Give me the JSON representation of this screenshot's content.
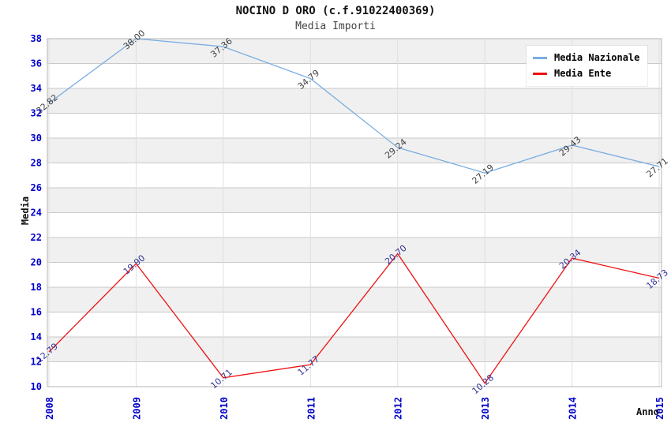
{
  "header": {
    "title": "NOCINO D ORO (c.f.91022400369)",
    "subtitle": "Media Importi"
  },
  "chart_data": {
    "type": "line",
    "title": "NOCINO D ORO (c.f.91022400369)",
    "subtitle": "Media Importi",
    "xlabel": "Anno",
    "ylabel": "Media",
    "categories": [
      "2008",
      "2009",
      "2010",
      "2011",
      "2012",
      "2013",
      "2014",
      "2015"
    ],
    "series": [
      {
        "name": "Media Nazionale",
        "color": "#79ADE2",
        "label_color": "#404040",
        "values": [
          32.82,
          38.0,
          37.36,
          34.79,
          29.24,
          27.19,
          29.43,
          27.71
        ]
      },
      {
        "name": "Media Ente",
        "color": "#EE1111",
        "label_color": "#333399",
        "values": [
          12.79,
          19.9,
          10.71,
          11.77,
          20.7,
          10.28,
          20.34,
          18.73
        ]
      }
    ],
    "ylim": [
      10,
      38
    ],
    "ytick_step": 2,
    "grid": true,
    "band_colors": [
      "#ffffff",
      "#f0f0f0"
    ],
    "gridline_color": "#c9c9c9",
    "vertical_gridline_color": "#dfdfdf",
    "plot_border_color": "#b4b4b4",
    "tick_label_color": "#0000CC",
    "legend_position": "top-right",
    "value_label_decimals": 2
  }
}
